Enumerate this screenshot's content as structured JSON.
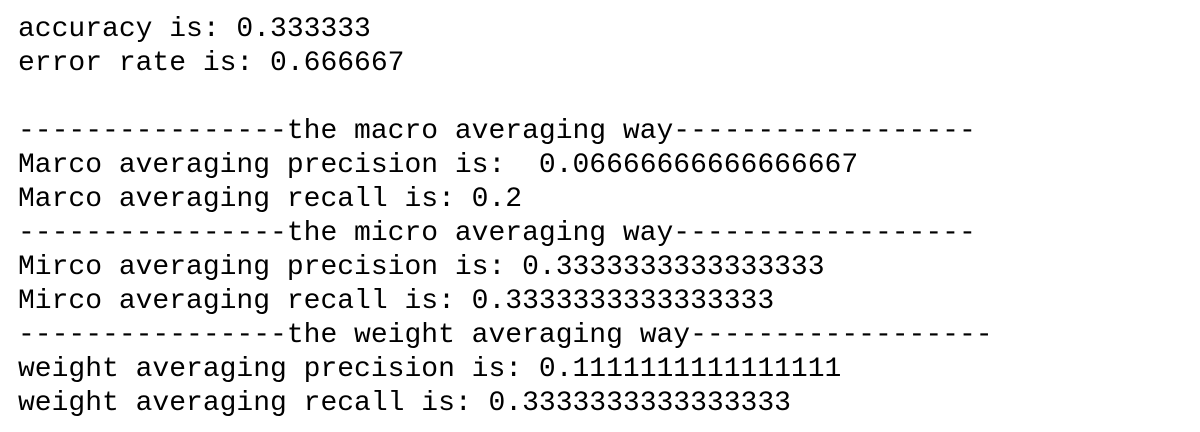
{
  "output": {
    "lines": [
      "accuracy is: 0.333333",
      "error rate is: 0.666667",
      "----------------the macro averaging way------------------",
      "Marco averaging precision is:  0.06666666666666667",
      "Marco averaging recall is: 0.2",
      "----------------the micro averaging way------------------",
      "Mirco averaging precision is: 0.3333333333333333",
      "Mirco averaging recall is: 0.3333333333333333",
      "----------------the weight averaging way------------------",
      "weight averaging precision is: 0.1111111111111111",
      "weight averaging recall is: 0.3333333333333333"
    ]
  }
}
